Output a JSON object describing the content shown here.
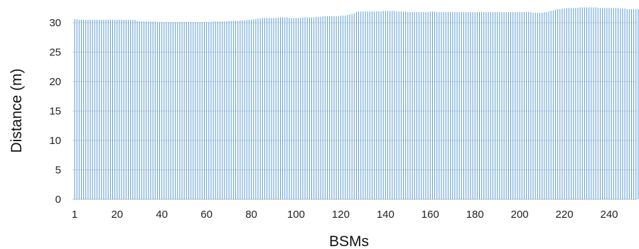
{
  "chart_data": {
    "type": "bar",
    "title": "",
    "xlabel": "BSMs",
    "ylabel": "Distance (m)",
    "ylim": [
      0,
      32
    ],
    "yticks": [
      0,
      5,
      10,
      15,
      20,
      25,
      30
    ],
    "xlim": [
      1,
      255
    ],
    "xticks": [
      1,
      20,
      40,
      60,
      80,
      100,
      120,
      140,
      160,
      180,
      200,
      220,
      240
    ],
    "grid": "horizontal",
    "color": "#5b9bd5",
    "series": [
      {
        "x_start": 1,
        "x_step": 1,
        "values": [
          30.6,
          30.6,
          30.5,
          30.5,
          30.5,
          30.5,
          30.5,
          30.5,
          30.5,
          30.5,
          30.5,
          30.5,
          30.5,
          30.5,
          30.5,
          30.5,
          30.5,
          30.5,
          30.5,
          30.5,
          30.5,
          30.5,
          30.5,
          30.5,
          30.5,
          30.5,
          30.5,
          30.5,
          30.3,
          30.2,
          30.2,
          30.2,
          30.2,
          30.2,
          30.2,
          30.2,
          30.2,
          30.1,
          30.1,
          30.1,
          30.1,
          30.1,
          30.1,
          30.1,
          30.1,
          30.1,
          30.1,
          30.1,
          30.1,
          30.1,
          30.1,
          30.1,
          30.1,
          30.1,
          30.1,
          30.1,
          30.1,
          30.1,
          30.1,
          30.1,
          30.1,
          30.1,
          30.2,
          30.2,
          30.2,
          30.2,
          30.2,
          30.2,
          30.2,
          30.3,
          30.3,
          30.3,
          30.3,
          30.3,
          30.4,
          30.4,
          30.4,
          30.5,
          30.5,
          30.5,
          30.6,
          30.6,
          30.7,
          30.7,
          30.8,
          30.8,
          30.8,
          30.8,
          30.8,
          30.8,
          30.8,
          30.9,
          30.9,
          30.9,
          30.9,
          30.9,
          30.8,
          30.8,
          30.8,
          30.8,
          30.8,
          30.8,
          30.9,
          30.9,
          30.9,
          30.9,
          30.9,
          30.9,
          31.0,
          31.0,
          31.0,
          31.1,
          31.1,
          31.1,
          31.1,
          31.1,
          31.1,
          31.1,
          31.1,
          31.2,
          31.2,
          31.2,
          31.3,
          31.4,
          31.5,
          31.6,
          31.8,
          31.9,
          31.9,
          31.9,
          31.9,
          31.9,
          31.9,
          31.9,
          31.9,
          31.9,
          31.9,
          31.9,
          32.0,
          32.0,
          32.0,
          32.0,
          32.0,
          32.0,
          31.9,
          31.9,
          31.9,
          31.9,
          31.9,
          31.8,
          31.8,
          31.8,
          31.8,
          31.8,
          31.8,
          31.8,
          31.8,
          31.8,
          31.8,
          31.9,
          31.9,
          31.9,
          31.8,
          31.8,
          31.8,
          31.8,
          31.8,
          31.8,
          31.8,
          31.8,
          31.8,
          31.8,
          31.8,
          31.8,
          31.8,
          31.8,
          31.8,
          31.8,
          31.8,
          31.8,
          31.8,
          31.8,
          31.8,
          31.8,
          31.8,
          31.8,
          31.8,
          31.8,
          31.8,
          31.8,
          31.8,
          31.8,
          31.8,
          31.8,
          31.8,
          31.8,
          31.8,
          31.8,
          31.8,
          31.8,
          31.8,
          31.8,
          31.8,
          31.8,
          31.8,
          31.7,
          31.7,
          31.7,
          31.7,
          31.7,
          31.8,
          31.8,
          31.9,
          32.0,
          32.1,
          32.2,
          32.3,
          32.3,
          32.4,
          32.4,
          32.5,
          32.5,
          32.5,
          32.5,
          32.5,
          32.5,
          32.6,
          32.6,
          32.6,
          32.6,
          32.6,
          32.6,
          32.6,
          32.6,
          32.5,
          32.5,
          32.5,
          32.5,
          32.5,
          32.5,
          32.5,
          32.5,
          32.5,
          32.5,
          32.4,
          32.4,
          32.4,
          32.3,
          32.3,
          32.3,
          32.3,
          32.3,
          32.3,
          32.3,
          32.3,
          32.3,
          32.3,
          32.3
        ]
      }
    ]
  }
}
